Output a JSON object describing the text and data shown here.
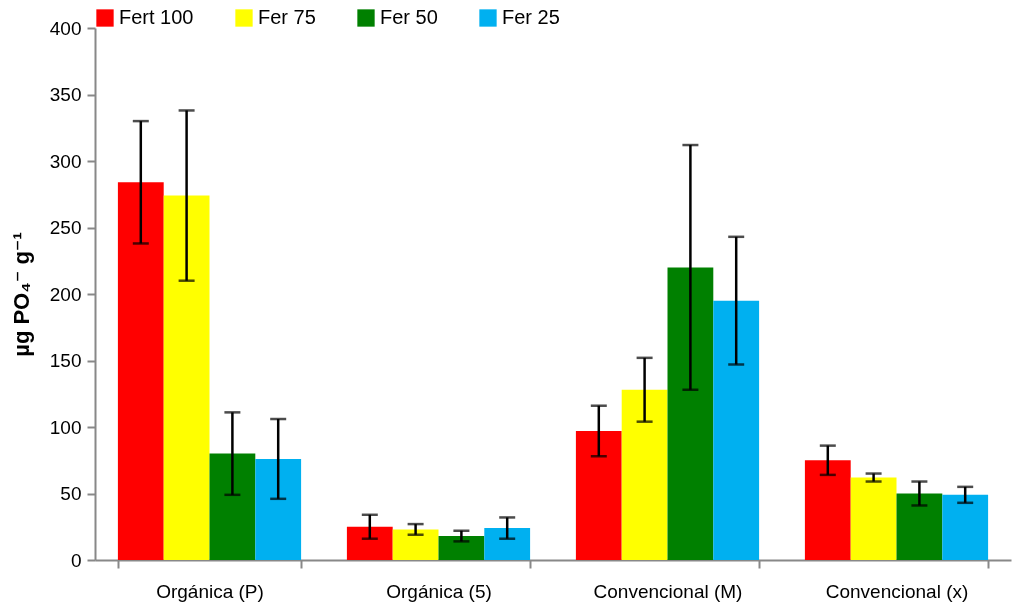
{
  "chart_data": {
    "type": "bar",
    "ylabel": "µg PO₄⁻ g⁻¹",
    "categories": [
      "Orgánica (P)",
      "Orgánica (5)",
      "Convencional (M)",
      "Convencional (x)"
    ],
    "series": [
      {
        "name": "Fert 100",
        "color": "#ff0000",
        "values": [
          284,
          25,
          97,
          75
        ],
        "errors": [
          46,
          9,
          19,
          11
        ]
      },
      {
        "name": "Fer 75",
        "color": "#ffff00",
        "values": [
          274,
          23,
          128,
          62
        ],
        "errors": [
          64,
          4,
          24,
          3
        ]
      },
      {
        "name": "Fer 50",
        "color": "#008000",
        "values": [
          80,
          18,
          220,
          50
        ],
        "errors": [
          31,
          4,
          92,
          9
        ]
      },
      {
        "name": "Fer 25",
        "color": "#00b0f0",
        "values": [
          76,
          24,
          195,
          49
        ],
        "errors": [
          30,
          8,
          48,
          6
        ]
      }
    ],
    "ylim": [
      0,
      400
    ],
    "yticks": [
      0,
      50,
      100,
      150,
      200,
      250,
      300,
      350,
      400
    ],
    "grid": false,
    "legend": "top"
  }
}
